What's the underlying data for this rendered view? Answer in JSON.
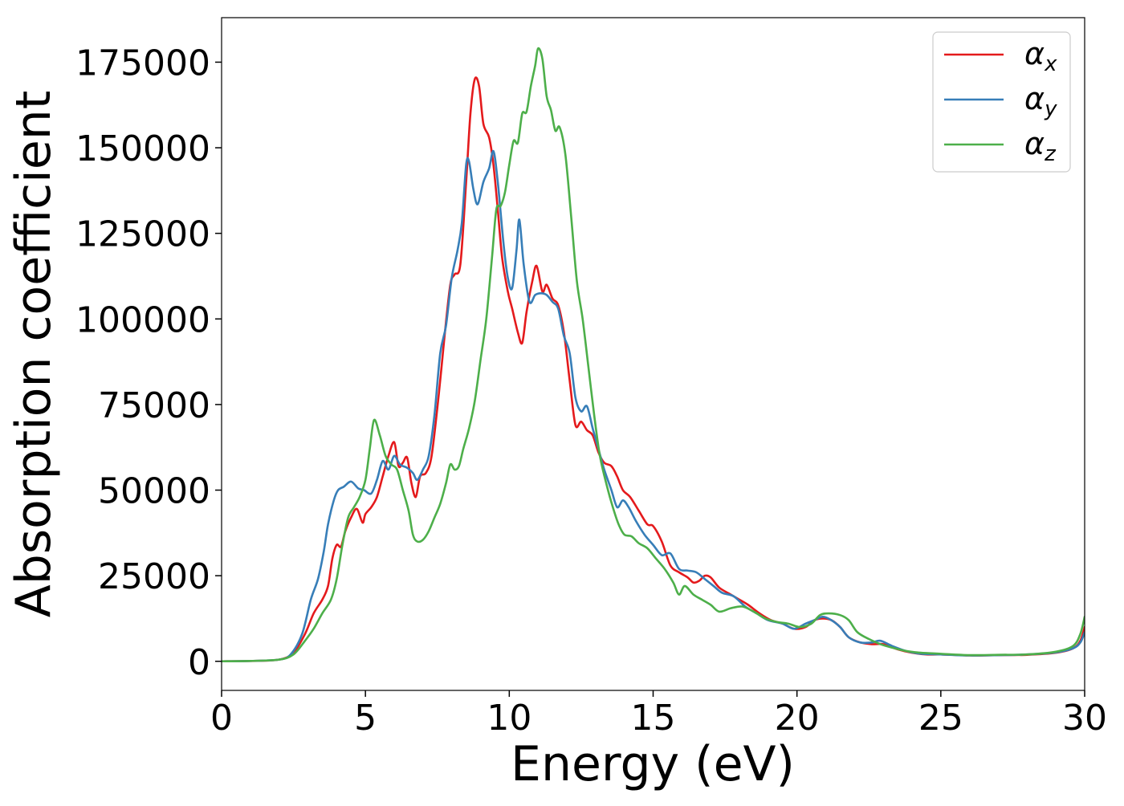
{
  "chart_data": {
    "type": "line",
    "title": "",
    "xlabel": "Energy (eV)",
    "ylabel": "Absorption coefficient",
    "xlim": [
      0,
      30
    ],
    "ylim": [
      -8500,
      188000
    ],
    "xticks": [
      0,
      5,
      10,
      15,
      20,
      25,
      30
    ],
    "xtick_labels": [
      "0",
      "5",
      "10",
      "15",
      "20",
      "25",
      "30"
    ],
    "yticks": [
      0,
      25000,
      50000,
      75000,
      100000,
      125000,
      150000,
      175000
    ],
    "ytick_labels": [
      "0",
      "25000",
      "50000",
      "75000",
      "100000",
      "125000",
      "150000",
      "175000"
    ],
    "grid": false,
    "legend": "top-right",
    "series": [
      {
        "name": "αx",
        "symbol": "α",
        "subscript": "x",
        "color": "#e41a1c",
        "points": [
          [
            0,
            0
          ],
          [
            1,
            100
          ],
          [
            2,
            500
          ],
          [
            2.5,
            2500
          ],
          [
            2.9,
            8000
          ],
          [
            3.2,
            14000
          ],
          [
            3.5,
            18000
          ],
          [
            3.7,
            22000
          ],
          [
            3.85,
            30000
          ],
          [
            4.0,
            34000
          ],
          [
            4.15,
            33500
          ],
          [
            4.3,
            38000
          ],
          [
            4.5,
            42000
          ],
          [
            4.7,
            44500
          ],
          [
            4.9,
            40500
          ],
          [
            5.0,
            43000
          ],
          [
            5.2,
            45000
          ],
          [
            5.4,
            48000
          ],
          [
            5.6,
            54000
          ],
          [
            5.8,
            60000
          ],
          [
            6.0,
            64000
          ],
          [
            6.15,
            57000
          ],
          [
            6.3,
            58000
          ],
          [
            6.45,
            59500
          ],
          [
            6.6,
            52000
          ],
          [
            6.75,
            48000
          ],
          [
            6.9,
            54000
          ],
          [
            7.1,
            55000
          ],
          [
            7.3,
            60000
          ],
          [
            7.55,
            78000
          ],
          [
            7.75,
            95000
          ],
          [
            7.95,
            110000
          ],
          [
            8.1,
            113000
          ],
          [
            8.3,
            116000
          ],
          [
            8.5,
            140000
          ],
          [
            8.65,
            160000
          ],
          [
            8.8,
            170000
          ],
          [
            8.95,
            168000
          ],
          [
            9.1,
            157000
          ],
          [
            9.3,
            153000
          ],
          [
            9.45,
            145000
          ],
          [
            9.6,
            132000
          ],
          [
            9.75,
            118000
          ],
          [
            9.95,
            108000
          ],
          [
            10.1,
            103000
          ],
          [
            10.3,
            96000
          ],
          [
            10.45,
            93000
          ],
          [
            10.6,
            102000
          ],
          [
            10.8,
            111000
          ],
          [
            10.95,
            115500
          ],
          [
            11.15,
            108000
          ],
          [
            11.3,
            110000
          ],
          [
            11.5,
            106000
          ],
          [
            11.7,
            104000
          ],
          [
            11.9,
            96000
          ],
          [
            12.1,
            82000
          ],
          [
            12.3,
            69000
          ],
          [
            12.5,
            70000
          ],
          [
            12.7,
            67500
          ],
          [
            12.9,
            66000
          ],
          [
            13.1,
            61000
          ],
          [
            13.3,
            58000
          ],
          [
            13.55,
            57000
          ],
          [
            13.75,
            54000
          ],
          [
            13.95,
            50000
          ],
          [
            14.2,
            48000
          ],
          [
            14.5,
            44000
          ],
          [
            14.8,
            40000
          ],
          [
            15.0,
            39500
          ],
          [
            15.3,
            35000
          ],
          [
            15.6,
            28000
          ],
          [
            15.9,
            26000
          ],
          [
            16.2,
            24500
          ],
          [
            16.4,
            23000
          ],
          [
            16.6,
            23500
          ],
          [
            16.8,
            25000
          ],
          [
            17.0,
            24500
          ],
          [
            17.3,
            21500
          ],
          [
            17.7,
            19500
          ],
          [
            18.0,
            18000
          ],
          [
            18.3,
            16500
          ],
          [
            18.7,
            14000
          ],
          [
            19.1,
            12000
          ],
          [
            19.5,
            11000
          ],
          [
            19.9,
            9500
          ],
          [
            20.3,
            10000
          ],
          [
            20.6,
            12000
          ],
          [
            20.9,
            12500
          ],
          [
            21.2,
            12000
          ],
          [
            21.5,
            10000
          ],
          [
            21.8,
            7000
          ],
          [
            22.2,
            5500
          ],
          [
            22.6,
            5000
          ],
          [
            23.0,
            5000
          ],
          [
            23.5,
            3500
          ],
          [
            24.0,
            2500
          ],
          [
            24.5,
            2000
          ],
          [
            25.0,
            2000
          ],
          [
            26.0,
            1700
          ],
          [
            27.0,
            1800
          ],
          [
            28.0,
            1900
          ],
          [
            29.0,
            2500
          ],
          [
            29.6,
            3800
          ],
          [
            29.85,
            6000
          ],
          [
            30.0,
            10000
          ]
        ]
      },
      {
        "name": "αy",
        "symbol": "α",
        "subscript": "y",
        "color": "#377eb8",
        "points": [
          [
            0,
            0
          ],
          [
            1,
            100
          ],
          [
            2,
            500
          ],
          [
            2.4,
            2000
          ],
          [
            2.8,
            8000
          ],
          [
            3.1,
            18000
          ],
          [
            3.35,
            24000
          ],
          [
            3.55,
            32000
          ],
          [
            3.7,
            40000
          ],
          [
            3.9,
            47000
          ],
          [
            4.05,
            50000
          ],
          [
            4.25,
            51000
          ],
          [
            4.5,
            52500
          ],
          [
            4.75,
            50500
          ],
          [
            4.95,
            50000
          ],
          [
            5.2,
            49000
          ],
          [
            5.4,
            53000
          ],
          [
            5.6,
            58500
          ],
          [
            5.8,
            56000
          ],
          [
            6.0,
            60000
          ],
          [
            6.2,
            57500
          ],
          [
            6.45,
            56500
          ],
          [
            6.65,
            55000
          ],
          [
            6.8,
            53000
          ],
          [
            7.0,
            56000
          ],
          [
            7.2,
            60000
          ],
          [
            7.4,
            72000
          ],
          [
            7.6,
            90000
          ],
          [
            7.8,
            98000
          ],
          [
            8.0,
            112000
          ],
          [
            8.2,
            120000
          ],
          [
            8.35,
            128000
          ],
          [
            8.5,
            145000
          ],
          [
            8.6,
            146000
          ],
          [
            8.75,
            138000
          ],
          [
            8.9,
            133500
          ],
          [
            9.1,
            140000
          ],
          [
            9.3,
            144000
          ],
          [
            9.45,
            149000
          ],
          [
            9.6,
            140000
          ],
          [
            9.8,
            122000
          ],
          [
            9.95,
            112000
          ],
          [
            10.1,
            109000
          ],
          [
            10.25,
            120000
          ],
          [
            10.35,
            129000
          ],
          [
            10.5,
            116000
          ],
          [
            10.7,
            105000
          ],
          [
            10.9,
            107000
          ],
          [
            11.1,
            107500
          ],
          [
            11.3,
            107000
          ],
          [
            11.5,
            105000
          ],
          [
            11.7,
            103000
          ],
          [
            11.9,
            95000
          ],
          [
            12.1,
            90000
          ],
          [
            12.3,
            77000
          ],
          [
            12.5,
            73000
          ],
          [
            12.7,
            74500
          ],
          [
            12.9,
            68000
          ],
          [
            13.1,
            62000
          ],
          [
            13.3,
            56000
          ],
          [
            13.55,
            50000
          ],
          [
            13.75,
            45000
          ],
          [
            13.95,
            47000
          ],
          [
            14.15,
            45000
          ],
          [
            14.4,
            41000
          ],
          [
            14.7,
            37000
          ],
          [
            15.0,
            34000
          ],
          [
            15.3,
            31000
          ],
          [
            15.6,
            31500
          ],
          [
            15.9,
            27000
          ],
          [
            16.2,
            26500
          ],
          [
            16.5,
            26000
          ],
          [
            16.8,
            24000
          ],
          [
            17.1,
            22000
          ],
          [
            17.4,
            20000
          ],
          [
            17.8,
            19000
          ],
          [
            18.2,
            16000
          ],
          [
            18.6,
            14000
          ],
          [
            19.0,
            12000
          ],
          [
            19.5,
            11000
          ],
          [
            19.9,
            9500
          ],
          [
            20.3,
            11000
          ],
          [
            20.6,
            12000
          ],
          [
            20.9,
            13000
          ],
          [
            21.2,
            12000
          ],
          [
            21.5,
            10000
          ],
          [
            21.8,
            7000
          ],
          [
            22.2,
            5500
          ],
          [
            22.6,
            5500
          ],
          [
            22.9,
            6000
          ],
          [
            23.3,
            4500
          ],
          [
            23.8,
            3000
          ],
          [
            24.3,
            2200
          ],
          [
            25.0,
            2000
          ],
          [
            26.0,
            1700
          ],
          [
            27.0,
            1800
          ],
          [
            28.0,
            2000
          ],
          [
            29.0,
            2600
          ],
          [
            29.6,
            3800
          ],
          [
            29.85,
            5500
          ],
          [
            30.0,
            8500
          ]
        ]
      },
      {
        "name": "αz",
        "symbol": "α",
        "subscript": "z",
        "color": "#4daf4a",
        "points": [
          [
            0,
            0
          ],
          [
            1,
            100
          ],
          [
            2,
            500
          ],
          [
            2.5,
            2000
          ],
          [
            2.9,
            6000
          ],
          [
            3.2,
            9500
          ],
          [
            3.5,
            14000
          ],
          [
            3.8,
            18000
          ],
          [
            4.0,
            24000
          ],
          [
            4.2,
            34000
          ],
          [
            4.4,
            42000
          ],
          [
            4.6,
            45000
          ],
          [
            4.8,
            48000
          ],
          [
            5.0,
            53000
          ],
          [
            5.15,
            62000
          ],
          [
            5.3,
            70500
          ],
          [
            5.5,
            66000
          ],
          [
            5.7,
            60000
          ],
          [
            5.9,
            57500
          ],
          [
            6.1,
            56000
          ],
          [
            6.3,
            50000
          ],
          [
            6.5,
            44000
          ],
          [
            6.65,
            37000
          ],
          [
            6.8,
            35000
          ],
          [
            7.0,
            35500
          ],
          [
            7.2,
            38000
          ],
          [
            7.4,
            42000
          ],
          [
            7.6,
            46000
          ],
          [
            7.8,
            52000
          ],
          [
            7.95,
            57500
          ],
          [
            8.1,
            56000
          ],
          [
            8.25,
            57000
          ],
          [
            8.4,
            62000
          ],
          [
            8.6,
            68000
          ],
          [
            8.8,
            76000
          ],
          [
            9.0,
            88000
          ],
          [
            9.2,
            100000
          ],
          [
            9.4,
            118000
          ],
          [
            9.55,
            132000
          ],
          [
            9.7,
            133000
          ],
          [
            9.85,
            137000
          ],
          [
            10.0,
            145000
          ],
          [
            10.15,
            152000
          ],
          [
            10.3,
            151500
          ],
          [
            10.45,
            160000
          ],
          [
            10.6,
            160500
          ],
          [
            10.75,
            168000
          ],
          [
            10.9,
            174000
          ],
          [
            11.0,
            179000
          ],
          [
            11.15,
            176000
          ],
          [
            11.3,
            165000
          ],
          [
            11.45,
            161000
          ],
          [
            11.6,
            155000
          ],
          [
            11.75,
            156000
          ],
          [
            11.95,
            148000
          ],
          [
            12.15,
            130000
          ],
          [
            12.35,
            111000
          ],
          [
            12.55,
            100000
          ],
          [
            12.75,
            86000
          ],
          [
            12.95,
            72000
          ],
          [
            13.15,
            60000
          ],
          [
            13.4,
            51000
          ],
          [
            13.6,
            45000
          ],
          [
            13.8,
            40000
          ],
          [
            14.0,
            37000
          ],
          [
            14.25,
            36500
          ],
          [
            14.5,
            34500
          ],
          [
            14.8,
            33000
          ],
          [
            15.1,
            30000
          ],
          [
            15.4,
            27000
          ],
          [
            15.7,
            23000
          ],
          [
            15.9,
            19500
          ],
          [
            16.1,
            22000
          ],
          [
            16.4,
            19500
          ],
          [
            16.7,
            18000
          ],
          [
            17.0,
            16500
          ],
          [
            17.3,
            14500
          ],
          [
            17.7,
            15500
          ],
          [
            18.1,
            16000
          ],
          [
            18.5,
            14500
          ],
          [
            18.9,
            12500
          ],
          [
            19.3,
            11500
          ],
          [
            19.7,
            11000
          ],
          [
            20.1,
            10000
          ],
          [
            20.5,
            11000
          ],
          [
            20.8,
            13500
          ],
          [
            21.1,
            14000
          ],
          [
            21.5,
            13500
          ],
          [
            21.8,
            12000
          ],
          [
            22.1,
            8500
          ],
          [
            22.5,
            6500
          ],
          [
            22.9,
            5000
          ],
          [
            23.3,
            4000
          ],
          [
            23.8,
            3000
          ],
          [
            24.3,
            2500
          ],
          [
            25.0,
            2200
          ],
          [
            26.0,
            1800
          ],
          [
            27.0,
            1900
          ],
          [
            28.0,
            2000
          ],
          [
            29.0,
            2800
          ],
          [
            29.6,
            4500
          ],
          [
            29.85,
            8000
          ],
          [
            30.0,
            13000
          ]
        ]
      }
    ]
  }
}
